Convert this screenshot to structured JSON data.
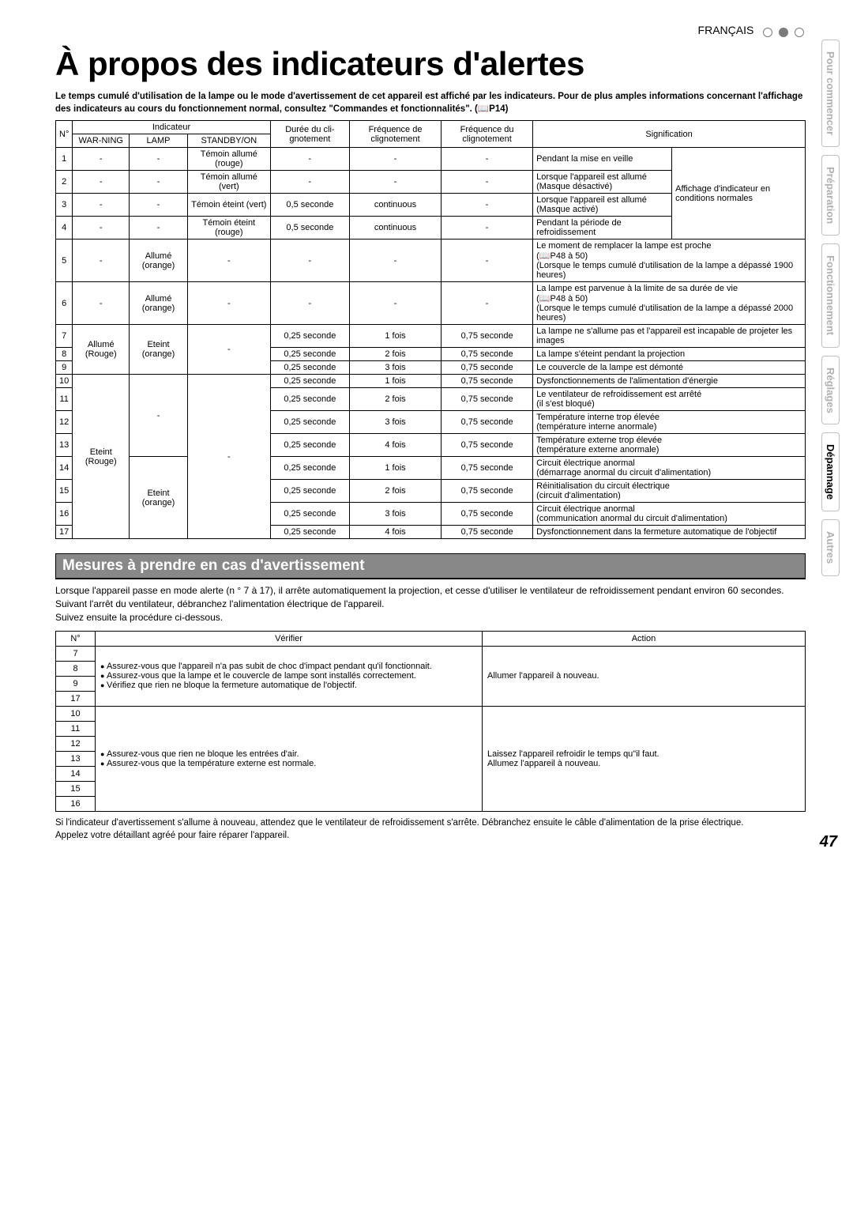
{
  "lang_label": "FRANÇAIS",
  "title": "À propos des indicateurs d'alertes",
  "intro": "Le temps cumulé d'utilisation de la lampe ou le mode d'avertissement de cet appareil est affiché par les indicateurs. Pour de plus amples informations concernant l'affichage des indicateurs au cours du fonctionnement normal, consultez \"Commandes et fonctionnalités\". (📖P14)",
  "main_headers": {
    "no": "N°",
    "indicateur": "Indicateur",
    "warning": "WAR-NING",
    "lamp": "LAMP",
    "standby": "STANDBY/ON",
    "duree": "Durée du cli-gnotement",
    "freq_de": "Fréquence de clignotement",
    "freq_du": "Fréquence du clignotement",
    "signif": "Signification"
  },
  "normal_display": "Affichage d'indicateur en conditions normales",
  "rows": [
    {
      "n": "1",
      "w": "-",
      "l": "-",
      "s": "Témoin allumé (rouge)",
      "d": "-",
      "fde": "-",
      "fdu": "-",
      "sig": "Pendant la mise en veille"
    },
    {
      "n": "2",
      "w": "-",
      "l": "-",
      "s": "Témoin allumé (vert)",
      "d": "-",
      "fde": "-",
      "fdu": "-",
      "sig": "Lorsque l'appareil est allumé\n(Masque désactivé)"
    },
    {
      "n": "3",
      "w": "-",
      "l": "-",
      "s": "Témoin éteint (vert)",
      "d": "0,5 seconde",
      "fde": "continuous",
      "fdu": "-",
      "sig": "Lorsque l'appareil est allumé (Masque activé)"
    },
    {
      "n": "4",
      "w": "-",
      "l": "-",
      "s": "Témoin éteint (rouge)",
      "d": "0,5 seconde",
      "fde": "continuous",
      "fdu": "-",
      "sig": "Pendant la période de refroidissement"
    },
    {
      "n": "5",
      "w": "-",
      "l": "Allumé (orange)",
      "s": "-",
      "d": "-",
      "fde": "-",
      "fdu": "-",
      "sig": "Le moment de remplacer la lampe est proche\n(📖P48 à 50)\n(Lorsque le temps cumulé d'utilisation de la lampe a dépassé 1900 heures)"
    },
    {
      "n": "6",
      "w": "-",
      "l": "Allumé (orange)",
      "s": "-",
      "d": "-",
      "fde": "-",
      "fdu": "-",
      "sig": "La lampe est parvenue à la limite de sa durée de vie\n(📖P48 à 50)\n(Lorsque le temps cumulé d'utilisation de la lampe a dépassé 2000 heures)"
    },
    {
      "n": "7",
      "d": "0,25 seconde",
      "fde": "1 fois",
      "fdu": "0,75 seconde",
      "sig": "La lampe ne s'allume pas et l'appareil est incapable de projeter les images"
    },
    {
      "n": "8",
      "d": "0,25 seconde",
      "fde": "2 fois",
      "fdu": "0,75 seconde",
      "sig": "La lampe s'éteint pendant la projection"
    },
    {
      "n": "9",
      "d": "0,25 seconde",
      "fde": "3 fois",
      "fdu": "0,75 seconde",
      "sig": "Le couvercle de la  lampe est démonté"
    },
    {
      "n": "10",
      "d": "0,25 seconde",
      "fde": "1 fois",
      "fdu": "0,75 seconde",
      "sig": "Dysfonctionnements de l'alimentation d'énergie"
    },
    {
      "n": "11",
      "d": "0,25 seconde",
      "fde": "2 fois",
      "fdu": "0,75 seconde",
      "sig": "Le ventilateur de refroidissement est arrêté\n(il s'est bloqué)"
    },
    {
      "n": "12",
      "d": "0,25 seconde",
      "fde": "3 fois",
      "fdu": "0,75 seconde",
      "sig": "Température interne trop élevée\n(température interne anormale)"
    },
    {
      "n": "13",
      "d": "0,25 seconde",
      "fde": "4 fois",
      "fdu": "0,75 seconde",
      "sig": "Température externe trop élevée\n(température externe anormale)"
    },
    {
      "n": "14",
      "d": "0,25 seconde",
      "fde": "1 fois",
      "fdu": "0,75 seconde",
      "sig": "Circuit électrique anormal\n(démarrage anormal du circuit d'alimentation)"
    },
    {
      "n": "15",
      "d": "0,25 seconde",
      "fde": "2 fois",
      "fdu": "0,75 seconde",
      "sig": "Réinitialisation du circuit électrique\n(circuit d'alimentation)"
    },
    {
      "n": "16",
      "d": "0,25 seconde",
      "fde": "3 fois",
      "fdu": "0,75 seconde",
      "sig": "Circuit électrique anormal\n(communication anormal du circuit d'alimentation)"
    },
    {
      "n": "17",
      "d": "0,25 seconde",
      "fde": "4 fois",
      "fdu": "0,75 seconde",
      "sig": "Dysfonctionnement dans la fermeture automatique de l'objectif"
    }
  ],
  "group_7_9": {
    "w": "Allumé (Rouge)",
    "l": "Eteint (orange)",
    "s": "-"
  },
  "group_10_17": {
    "w": "Eteint (Rouge)"
  },
  "group_10_13_l": "-",
  "group_14_17_l": "Eteint (orange)",
  "group_10_17_s": "-",
  "section2_title": "Mesures à prendre en cas d'avertissement",
  "section2_para": "Lorsque l'appareil passe en mode alerte (n ° 7 à 17), il arrête automatiquement la projection, et cesse d'utiliser le ventilateur de refroidissement pendant environ 60 secondes.\nSuivant l'arrêt du ventilateur, débranchez l'alimentation électrique de l'appareil.\nSuivez ensuite la procédure ci-dessous.",
  "action_headers": {
    "no": "N°",
    "ver": "Vérifier",
    "act": "Action"
  },
  "action_group1": {
    "nums": [
      "7",
      "8",
      "9",
      "17"
    ],
    "ver_items": [
      "Assurez-vous que l'appareil n'a pas subit de choc d'impact pendant qu'il fonctionnait.",
      "Assurez-vous que la lampe et le couvercle de lampe sont installés correctement.",
      "Vérifiez que rien ne bloque la fermeture automatique de l'objectif."
    ],
    "act": "Allumer l'appareil à nouveau."
  },
  "action_group2": {
    "nums": [
      "10",
      "11",
      "12",
      "13",
      "14",
      "15",
      "16"
    ],
    "ver_items": [
      "Assurez-vous que rien ne bloque les entrées d'air.",
      "Assurez-vous que la température externe est normale."
    ],
    "act": "Laissez l'appareil refroidir le temps qu\"il faut.\nAllumez l'appareil à nouveau."
  },
  "footnote": "Si l'indicateur d'avertissement s'allume à nouveau, attendez que le ventilateur de refroidissement s'arrête. Débranchez ensuite le câble d'alimentation de la prise électrique.\nAppelez votre détaillant agréé pour faire réparer l'appareil.",
  "tabs": [
    "Pour commencer",
    "Préparation",
    "Fonctionnement",
    "Réglages",
    "Dépannage",
    "Autres"
  ],
  "active_tab_index": 4,
  "page_number": "47"
}
